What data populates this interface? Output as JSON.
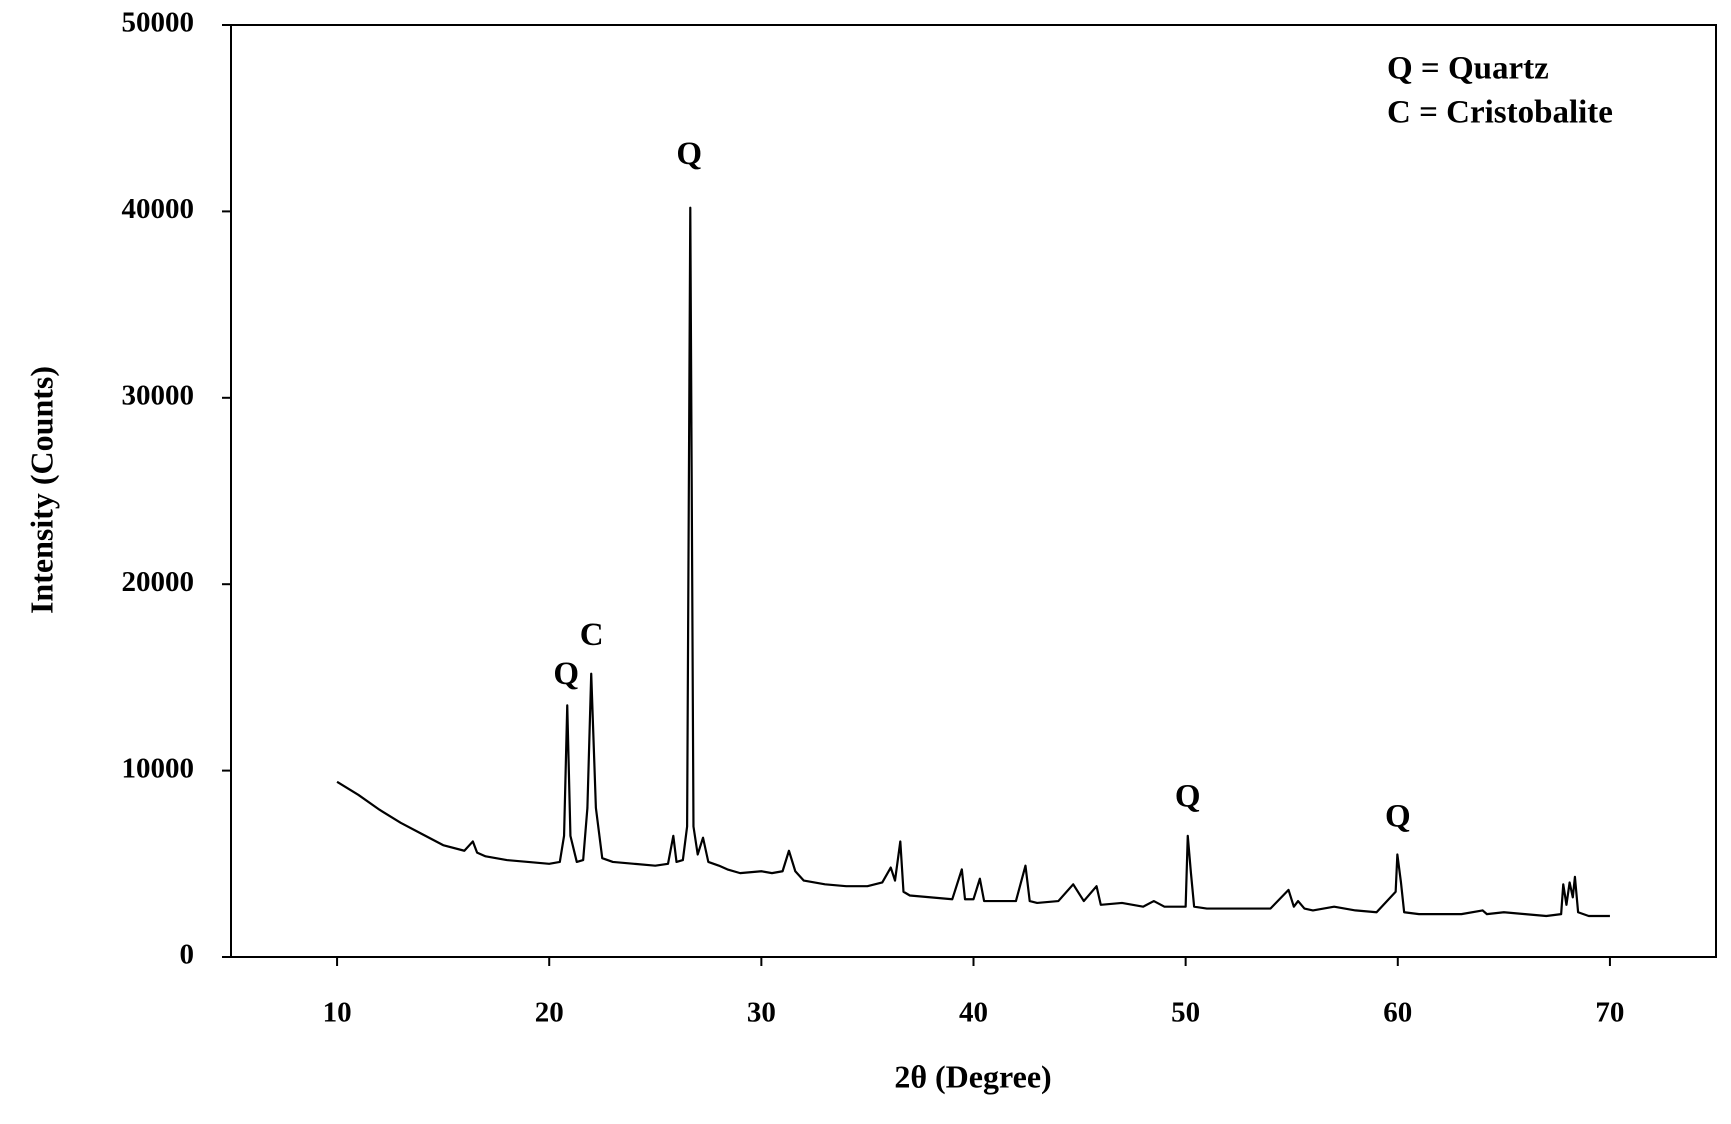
{
  "chart_data": {
    "type": "line",
    "x_label": "2θ (Degree)",
    "y_label": "Intensity (Counts)",
    "xlim": [
      5,
      75
    ],
    "ylim": [
      0,
      50000
    ],
    "xticks": [
      10,
      20,
      30,
      40,
      50,
      60,
      70
    ],
    "yticks": [
      0,
      10000,
      20000,
      30000,
      40000,
      50000
    ],
    "key": [
      "Q = Quartz",
      "C = Cristobalite"
    ],
    "annotations": [
      {
        "text": "Q",
        "x": 26.6,
        "y": 42950
      },
      {
        "text": "Q",
        "x": 20.8,
        "y": 15050
      },
      {
        "text": "C",
        "x": 22.0,
        "y": 17150
      },
      {
        "text": "Q",
        "x": 50.1,
        "y": 8480
      },
      {
        "text": "Q",
        "x": 60.0,
        "y": 7400
      }
    ],
    "series": [
      {
        "color": "#000000",
        "x": [
          10,
          11,
          12,
          13,
          14,
          15,
          16,
          16.4,
          16.6,
          17,
          18,
          19,
          20,
          20.5,
          20.7,
          20.85,
          21.0,
          21.3,
          21.6,
          21.8,
          21.98,
          22.2,
          22.5,
          23,
          24,
          25,
          25.6,
          25.85,
          26.0,
          26.3,
          26.5,
          26.65,
          26.8,
          27.0,
          27.25,
          27.5,
          28,
          28.4,
          29,
          30,
          30.5,
          31,
          31.3,
          31.6,
          32,
          33,
          34,
          35,
          35.7,
          36.1,
          36.3,
          36.55,
          36.7,
          37,
          38,
          39,
          39.45,
          39.6,
          40,
          40.3,
          40.5,
          41,
          42,
          42.45,
          42.65,
          43,
          44,
          44.7,
          45.2,
          45.8,
          46,
          47,
          48,
          48.5,
          49,
          50,
          50.1,
          50.25,
          50.4,
          51,
          52,
          53,
          54,
          54.85,
          55.1,
          55.3,
          55.6,
          56,
          57,
          58,
          59,
          59.9,
          59.98,
          60.15,
          60.3,
          61,
          62,
          63,
          64,
          64.2,
          65,
          66,
          67,
          67.7,
          67.8,
          67.95,
          68.1,
          68.25,
          68.35,
          68.5,
          69,
          70
        ],
        "values": [
          9400,
          8700,
          7900,
          7200,
          6600,
          6000,
          5700,
          6200,
          5600,
          5400,
          5200,
          5100,
          5000,
          5100,
          6500,
          13500,
          6500,
          5100,
          5200,
          8000,
          15200,
          8000,
          5300,
          5100,
          5000,
          4900,
          5000,
          6500,
          5100,
          5200,
          7000,
          40200,
          7000,
          5500,
          6400,
          5100,
          4900,
          4700,
          4500,
          4600,
          4500,
          4600,
          5700,
          4600,
          4100,
          3900,
          3800,
          3800,
          4000,
          4800,
          4100,
          6200,
          3500,
          3300,
          3200,
          3100,
          4700,
          3100,
          3100,
          4200,
          3000,
          3000,
          3000,
          4900,
          3000,
          2900,
          3000,
          3900,
          3000,
          3800,
          2800,
          2900,
          2700,
          3000,
          2700,
          2700,
          6500,
          4500,
          2700,
          2600,
          2600,
          2600,
          2600,
          3600,
          2700,
          3000,
          2600,
          2500,
          2700,
          2500,
          2400,
          3500,
          5500,
          4000,
          2400,
          2300,
          2300,
          2300,
          2500,
          2300,
          2400,
          2300,
          2200,
          2300,
          3900,
          2800,
          4000,
          3200,
          4300,
          2400,
          2200,
          2200
        ]
      }
    ]
  }
}
